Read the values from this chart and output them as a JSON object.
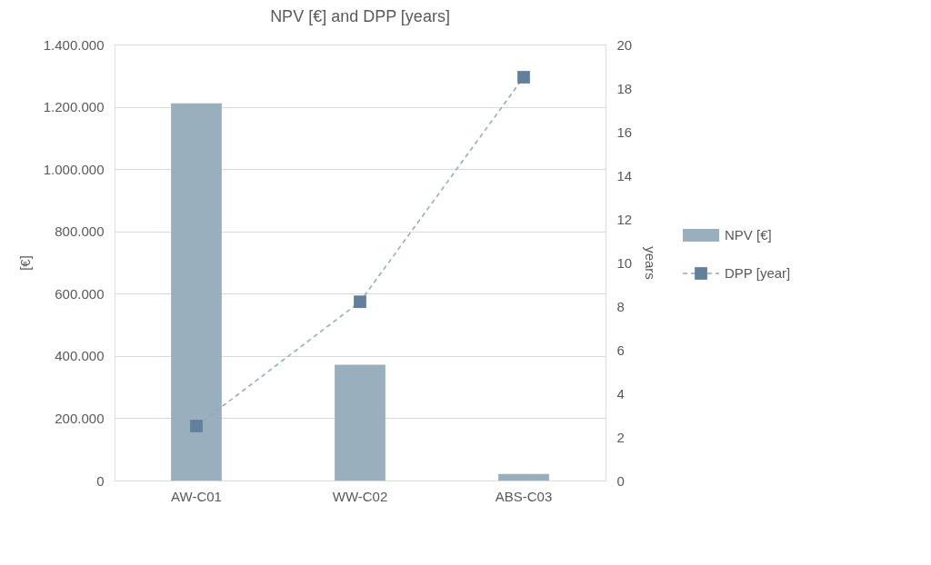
{
  "chart_data": {
    "type": "bar",
    "title": "NPV [€] and DPP [years]",
    "ylabel": "[€]",
    "y2label": "years",
    "categories": [
      "AW-C01",
      "WW-C02",
      "ABS-C03"
    ],
    "series": [
      {
        "name": "NPV [€]",
        "color": "#9aafbe",
        "values": [
          1211000,
          372000,
          21000
        ]
      },
      {
        "name": "DPP [year]",
        "type": "line",
        "axis": "y2",
        "color": "#62809b",
        "marker": "square",
        "line_style": "dashed",
        "values": [
          2.5,
          8.2,
          18.5
        ]
      }
    ],
    "ylim": [
      0,
      1400000
    ],
    "yticks": [
      0,
      {
        "value": 200000,
        "label": "200.000"
      },
      {
        "value": 400000,
        "label": "400.000"
      },
      {
        "value": 600000,
        "label": "600.000"
      },
      {
        "value": 800000,
        "label": "800.000"
      },
      {
        "value": 1000000,
        "label": "1.000.000"
      },
      {
        "value": 1200000,
        "label": "1.200.000"
      },
      {
        "value": 1400000,
        "label": "1.400.000"
      }
    ],
    "y2lim": [
      0,
      20
    ],
    "y2ticks": [
      0,
      2,
      4,
      6,
      8,
      10,
      12,
      14,
      16,
      18,
      20
    ],
    "grid": "y",
    "legend": "right"
  }
}
